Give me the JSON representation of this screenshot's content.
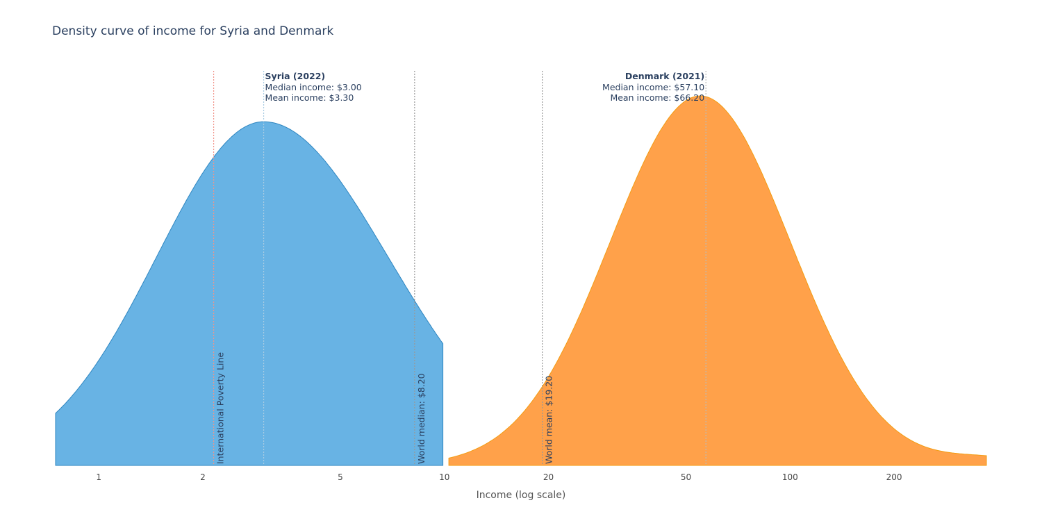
{
  "chart_data": {
    "type": "area",
    "title": "Density curve of income for Syria and Denmark",
    "xlabel": "Income (log scale)",
    "ylabel": "",
    "x_scale": "log",
    "xlim": [
      0.75,
      370
    ],
    "ylim": [
      0,
      1.0
    ],
    "x_ticks": [
      1,
      2,
      5,
      10,
      20,
      50,
      100,
      200
    ],
    "x_tick_labels": [
      "1",
      "2",
      "5",
      "10",
      "20",
      "50",
      "100",
      "200"
    ],
    "series": [
      {
        "name": "Syria (2022)",
        "color": "#5dade2",
        "line_color": "#2e86c1",
        "x_range": [
          0.75,
          9.9
        ],
        "peak_x": 3.0,
        "peak_density": 0.93,
        "sigma_log10": 0.31,
        "right_skew": 0.05
      },
      {
        "name": "Denmark (2021)",
        "color": "#ff9a3c",
        "line_color": "#f39c12",
        "x_range": [
          10.3,
          370
        ],
        "peak_x": 55,
        "peak_density": 1.0,
        "sigma_log10": 0.26,
        "tail_bump": [
          370,
          0.02
        ]
      }
    ],
    "reference_lines": [
      {
        "name": "International Poverty Line",
        "x": 2.15,
        "label": "International Poverty Line",
        "color": "#f1948a"
      },
      {
        "name": "World median",
        "x": 8.2,
        "label": "World median: $8.20",
        "color": "#999999"
      },
      {
        "name": "World mean",
        "x": 19.2,
        "label": "World mean: $19.20",
        "color": "#999999"
      },
      {
        "name": "Syria median",
        "x": 3.0,
        "label": "",
        "color": "#a9cce3"
      },
      {
        "name": "Denmark median",
        "x": 57.1,
        "label": "",
        "color": "#bbbbbb"
      }
    ],
    "annotations": [
      {
        "country": "Syria (2022)",
        "median": "Median income: $3.00",
        "mean": "Mean income: $3.30",
        "x": 3.0,
        "align": "left"
      },
      {
        "country": "Denmark (2021)",
        "median": "Median income: $57.10",
        "mean": "Mean income: $66.20",
        "x": 57.1,
        "align": "right"
      }
    ]
  }
}
